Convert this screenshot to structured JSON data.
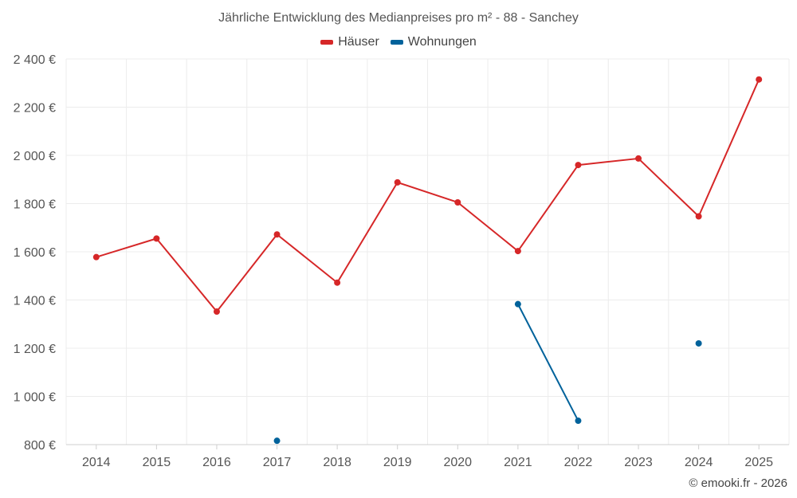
{
  "chart_data": {
    "type": "line",
    "title": "Jährliche Entwicklung des Medianpreises pro m² - 88 - Sanchey",
    "categories": [
      "2014",
      "2015",
      "2016",
      "2017",
      "2018",
      "2019",
      "2020",
      "2021",
      "2022",
      "2023",
      "2024",
      "2025"
    ],
    "series": [
      {
        "name": "Häuser",
        "color": "#d62728",
        "values": [
          1578,
          1655,
          1352,
          1672,
          1472,
          1888,
          1805,
          1603,
          1960,
          1987,
          1747,
          2315
        ]
      },
      {
        "name": "Wohnungen",
        "color": "#00629b",
        "values": [
          null,
          null,
          null,
          816,
          null,
          null,
          null,
          1383,
          899,
          null,
          1220,
          null
        ]
      }
    ],
    "ylim": [
      800,
      2400
    ],
    "yticks": [
      800,
      1000,
      1200,
      1400,
      1600,
      1800,
      2000,
      2200,
      2400
    ],
    "ytick_labels": [
      "800 €",
      "1 000 €",
      "1 200 €",
      "1 400 €",
      "1 600 €",
      "1 800 €",
      "2 000 €",
      "2 200 €",
      "2 400 €"
    ],
    "xlabel": "",
    "ylabel": "",
    "grid": true,
    "legend_position": "top-center"
  },
  "credit": "© emooki.fr - 2026"
}
